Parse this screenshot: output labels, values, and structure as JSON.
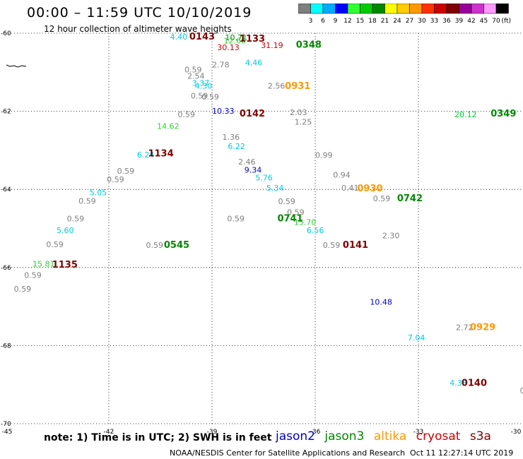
{
  "header": {
    "title": "00:00 – 11:59 UTC 10/10/2019",
    "subtitle": "12 hour collection of altimeter wave heights"
  },
  "legend": {
    "unit": "(ft)",
    "bins": [
      {
        "label": "3",
        "color": "#7f7f7f"
      },
      {
        "label": "6",
        "color": "#00ffff"
      },
      {
        "label": "9",
        "color": "#00aaff"
      },
      {
        "label": "12",
        "color": "#0000ff"
      },
      {
        "label": "15",
        "color": "#33ff33"
      },
      {
        "label": "18",
        "color": "#00cc00"
      },
      {
        "label": "21",
        "color": "#008800"
      },
      {
        "label": "24",
        "color": "#ffff00"
      },
      {
        "label": "27",
        "color": "#ffcc00"
      },
      {
        "label": "30",
        "color": "#ff9900"
      },
      {
        "label": "33",
        "color": "#ff3300"
      },
      {
        "label": "36",
        "color": "#cc0000"
      },
      {
        "label": "39",
        "color": "#800000"
      },
      {
        "label": "42",
        "color": "#990099"
      },
      {
        "label": "45",
        "color": "#cc33cc"
      },
      {
        "label": "70",
        "color": "#ff99ff"
      },
      {
        "label": "",
        "color": "#000000"
      }
    ]
  },
  "map": {
    "lon_range": [
      -45,
      -30
    ],
    "lat_range": [
      -60,
      -70
    ],
    "lon_ticks": [
      "-45",
      "-42",
      "-39",
      "-36",
      "-33",
      "-30"
    ],
    "lat_ticks": [
      "-60",
      "-62",
      "-64",
      "-66",
      "-68",
      "-70"
    ],
    "grid": "dotted",
    "colors": {
      "grey": "#7f7f7f",
      "cyan": "#00ccdd",
      "blue": "#0000cc",
      "green": "#33cc33",
      "dgreen": "#008800",
      "orange": "#ff9900",
      "red": "#cc0000",
      "dred": "#800000",
      "lime": "#00cc33"
    },
    "observations": [
      {
        "text": "4.40",
        "color": "cyan",
        "lon": -40.22,
        "lat": -60.16
      },
      {
        "text": "10.71",
        "color": "dgreen",
        "lon": -38.62,
        "lat": -60.18
      },
      {
        "text": "12.60",
        "color": "green",
        "lon": -38.66,
        "lat": -60.26
      },
      {
        "text": "30.13",
        "color": "red",
        "lon": -38.85,
        "lat": -60.43
      },
      {
        "text": "31.19",
        "color": "red",
        "lon": -37.58,
        "lat": -60.38
      },
      {
        "text": "4.46",
        "color": "cyan",
        "lon": -38.04,
        "lat": -60.82
      },
      {
        "text": "2.78",
        "color": "grey",
        "lon": -39.0,
        "lat": -60.88
      },
      {
        "text": "0.59",
        "color": "grey",
        "lon": -39.8,
        "lat": -61.0
      },
      {
        "text": "2.54",
        "color": "grey",
        "lon": -39.72,
        "lat": -61.17
      },
      {
        "text": "3.37",
        "color": "cyan",
        "lon": -39.58,
        "lat": -61.35
      },
      {
        "text": "4.30",
        "color": "cyan",
        "lon": -39.5,
        "lat": -61.42
      },
      {
        "text": "2.56",
        "color": "grey",
        "lon": -37.38,
        "lat": -61.42
      },
      {
        "text": "0.59",
        "color": "grey",
        "lon": -39.62,
        "lat": -61.67
      },
      {
        "text": "0.59",
        "color": "grey",
        "lon": -39.3,
        "lat": -61.7
      },
      {
        "text": "10.33",
        "color": "blue",
        "lon": -39.0,
        "lat": -62.06
      },
      {
        "text": "0.59",
        "color": "grey",
        "lon": -40.0,
        "lat": -62.15
      },
      {
        "text": "2.03",
        "color": "grey",
        "lon": -36.74,
        "lat": -62.1
      },
      {
        "text": "1.25",
        "color": "grey",
        "lon": -36.6,
        "lat": -62.34
      },
      {
        "text": "20.12",
        "color": "lime",
        "lon": -31.95,
        "lat": -62.15
      },
      {
        "text": "14.62",
        "color": "green",
        "lon": -40.6,
        "lat": -62.45
      },
      {
        "text": "1.36",
        "color": "grey",
        "lon": -38.7,
        "lat": -62.73
      },
      {
        "text": "6.22",
        "color": "cyan",
        "lon": -38.54,
        "lat": -62.97
      },
      {
        "text": "6.24",
        "color": "cyan",
        "lon": -41.18,
        "lat": -63.18
      },
      {
        "text": "0.99",
        "color": "grey",
        "lon": -36.0,
        "lat": -63.19
      },
      {
        "text": "2.46",
        "color": "grey",
        "lon": -38.24,
        "lat": -63.36
      },
      {
        "text": "9.34",
        "color": "blue",
        "lon": -38.06,
        "lat": -63.57
      },
      {
        "text": "0.59",
        "color": "grey",
        "lon": -41.76,
        "lat": -63.6
      },
      {
        "text": "0.94",
        "color": "grey",
        "lon": -35.48,
        "lat": -63.7
      },
      {
        "text": "5.76",
        "color": "cyan",
        "lon": -37.74,
        "lat": -63.77
      },
      {
        "text": "0.59",
        "color": "grey",
        "lon": -42.06,
        "lat": -63.82
      },
      {
        "text": "5.34",
        "color": "cyan",
        "lon": -37.42,
        "lat": -64.03
      },
      {
        "text": "0.41",
        "color": "grey",
        "lon": -35.24,
        "lat": -64.03
      },
      {
        "text": "5.05",
        "color": "cyan",
        "lon": -42.56,
        "lat": -64.15
      },
      {
        "text": "0.59",
        "color": "grey",
        "lon": -34.32,
        "lat": -64.3
      },
      {
        "text": "0.59",
        "color": "grey",
        "lon": -37.08,
        "lat": -64.38
      },
      {
        "text": "0.59",
        "color": "grey",
        "lon": -42.88,
        "lat": -64.37
      },
      {
        "text": "0.59",
        "color": "grey",
        "lon": -36.82,
        "lat": -64.66
      },
      {
        "text": "0.59",
        "color": "grey",
        "lon": -38.56,
        "lat": -64.82
      },
      {
        "text": "15.70",
        "color": "green",
        "lon": -36.62,
        "lat": -64.91
      },
      {
        "text": "0.59",
        "color": "grey",
        "lon": -43.22,
        "lat": -64.82
      },
      {
        "text": "5.60",
        "color": "cyan",
        "lon": -43.52,
        "lat": -65.12
      },
      {
        "text": "6.56",
        "color": "cyan",
        "lon": -36.25,
        "lat": -65.12
      },
      {
        "text": "2.30",
        "color": "grey",
        "lon": -34.05,
        "lat": -65.25
      },
      {
        "text": "0.59",
        "color": "grey",
        "lon": -43.82,
        "lat": -65.48
      },
      {
        "text": "0.59",
        "color": "grey",
        "lon": -40.92,
        "lat": -65.5
      },
      {
        "text": "0.59",
        "color": "grey",
        "lon": -35.78,
        "lat": -65.5
      },
      {
        "text": "15.81",
        "color": "green",
        "lon": -44.22,
        "lat": -65.98
      },
      {
        "text": "0.59",
        "color": "grey",
        "lon": -44.46,
        "lat": -66.27
      },
      {
        "text": "0.59",
        "color": "grey",
        "lon": -44.76,
        "lat": -66.62
      },
      {
        "text": "10.48",
        "color": "blue",
        "lon": -34.41,
        "lat": -66.95
      },
      {
        "text": "2.72",
        "color": "grey",
        "lon": -31.91,
        "lat": -67.6
      },
      {
        "text": "7.04",
        "color": "cyan",
        "lon": -33.31,
        "lat": -67.87
      },
      {
        "text": "4.33",
        "color": "cyan",
        "lon": -32.09,
        "lat": -69.02
      },
      {
        "text": "0.",
        "color": "grey",
        "lon": -30.05,
        "lat": -69.22
      }
    ],
    "orbits": [
      {
        "text": "0143",
        "color": "dred",
        "lon": -39.66,
        "lat": -60.16
      },
      {
        "text": "1133",
        "color": "dred",
        "lon": -38.2,
        "lat": -60.22
      },
      {
        "text": "0348",
        "color": "dgreen",
        "lon": -36.56,
        "lat": -60.37
      },
      {
        "text": "0931",
        "color": "orange",
        "lon": -36.88,
        "lat": -61.43
      },
      {
        "text": "0142",
        "color": "dred",
        "lon": -38.2,
        "lat": -62.13
      },
      {
        "text": "0349",
        "color": "dgreen",
        "lon": -30.9,
        "lat": -62.13
      },
      {
        "text": "1134",
        "color": "dred",
        "lon": -40.86,
        "lat": -63.16
      },
      {
        "text": "0930",
        "color": "orange",
        "lon": -34.78,
        "lat": -64.05
      },
      {
        "text": "0742",
        "color": "dgreen",
        "lon": -33.62,
        "lat": -64.3
      },
      {
        "text": "0741",
        "color": "dgreen",
        "lon": -37.1,
        "lat": -64.82
      },
      {
        "text": "0141",
        "color": "dred",
        "lon": -35.2,
        "lat": -65.5
      },
      {
        "text": "0545",
        "color": "dgreen",
        "lon": -40.4,
        "lat": -65.5
      },
      {
        "text": "1135",
        "color": "dred",
        "lon": -43.65,
        "lat": -66.0
      },
      {
        "text": "0929",
        "color": "orange",
        "lon": -31.5,
        "lat": -67.6
      },
      {
        "text": "0140",
        "color": "dred",
        "lon": -31.75,
        "lat": -69.03
      }
    ]
  },
  "footer": {
    "note": "note:  1) Time is in UTC;  2) SWH is in feet",
    "satellites": [
      {
        "name": "jason2",
        "color": "#0000cc"
      },
      {
        "name": "jason3",
        "color": "#008800"
      },
      {
        "name": "altika",
        "color": "#ff9900"
      },
      {
        "name": "cryosat",
        "color": "#cc0000"
      },
      {
        "name": "s3a",
        "color": "#800000"
      }
    ],
    "credit": "NOAA/NESDIS Center for Satellite Applications and Research",
    "timestamp": "Oct 11 12:27:14 UTC 2019"
  }
}
